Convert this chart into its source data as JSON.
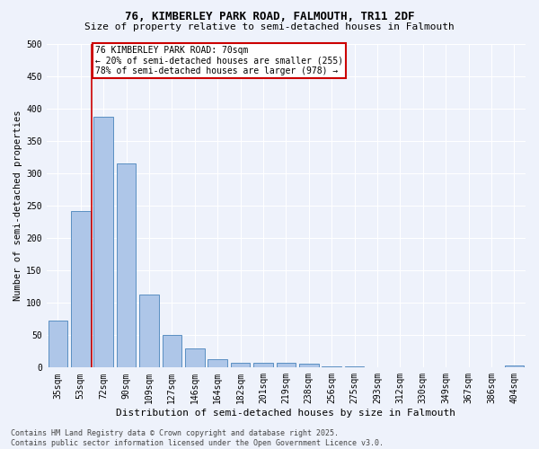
{
  "title_line1": "76, KIMBERLEY PARK ROAD, FALMOUTH, TR11 2DF",
  "title_line2": "Size of property relative to semi-detached houses in Falmouth",
  "xlabel": "Distribution of semi-detached houses by size in Falmouth",
  "ylabel": "Number of semi-detached properties",
  "categories": [
    "35sqm",
    "53sqm",
    "72sqm",
    "90sqm",
    "109sqm",
    "127sqm",
    "146sqm",
    "164sqm",
    "182sqm",
    "201sqm",
    "219sqm",
    "238sqm",
    "256sqm",
    "275sqm",
    "293sqm",
    "312sqm",
    "330sqm",
    "349sqm",
    "367sqm",
    "386sqm",
    "404sqm"
  ],
  "values": [
    72,
    242,
    387,
    315,
    113,
    50,
    29,
    13,
    7,
    7,
    7,
    6,
    2,
    2,
    1,
    1,
    0,
    0,
    0,
    0,
    3
  ],
  "bar_color": "#aec6e8",
  "bar_edge_color": "#5a8fc2",
  "vline_index": 1.5,
  "annotation_text_line1": "76 KIMBERLEY PARK ROAD: 70sqm",
  "annotation_text_line2": "← 20% of semi-detached houses are smaller (255)",
  "annotation_text_line3": "78% of semi-detached houses are larger (978) →",
  "footer_line1": "Contains HM Land Registry data © Crown copyright and database right 2025.",
  "footer_line2": "Contains public sector information licensed under the Open Government Licence v3.0.",
  "ylim": [
    0,
    500
  ],
  "yticks": [
    0,
    50,
    100,
    150,
    200,
    250,
    300,
    350,
    400,
    450,
    500
  ],
  "bg_color": "#eef2fb",
  "grid_color": "#ffffff",
  "annotation_box_facecolor": "#ffffff",
  "annotation_box_edge": "#cc0000",
  "vline_color": "#cc0000",
  "title1_fontsize": 9,
  "title2_fontsize": 8,
  "ylabel_fontsize": 7.5,
  "xlabel_fontsize": 8,
  "tick_fontsize": 7,
  "footer_fontsize": 6,
  "ann_fontsize": 7
}
